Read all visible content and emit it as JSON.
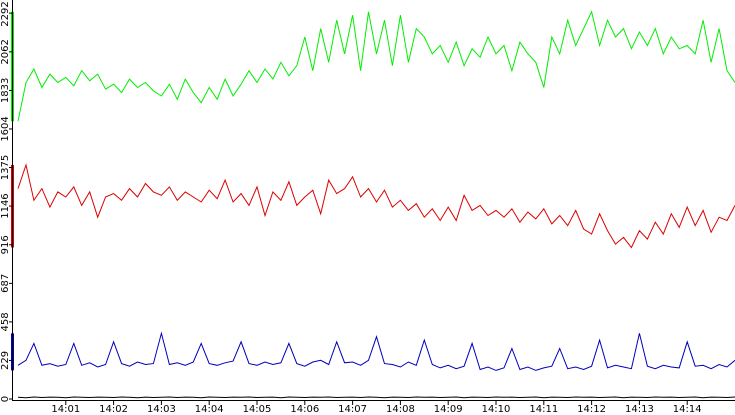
{
  "chart_data": {
    "type": "line",
    "x": [
      0,
      10,
      20,
      30,
      40,
      50,
      60,
      70,
      80,
      90,
      100,
      110,
      120,
      130,
      140,
      150,
      160,
      170,
      180,
      190,
      200,
      210,
      220,
      230,
      240,
      250,
      260,
      270,
      280,
      290,
      300,
      310,
      320,
      330,
      340,
      350,
      360,
      370,
      380,
      390,
      400,
      410,
      420,
      430,
      440,
      450,
      460,
      470,
      480,
      490,
      500,
      510,
      520,
      530,
      540,
      550,
      560,
      570,
      580,
      590,
      600,
      610,
      620,
      630,
      640,
      650,
      660,
      670,
      680,
      690,
      700,
      710,
      720,
      730,
      740,
      750,
      760,
      770,
      780,
      790,
      800,
      810,
      820,
      830,
      840,
      850,
      860,
      870,
      880,
      890,
      900
    ],
    "series": [
      {
        "color": "#00ee00",
        "values": [
          1650,
          1880,
          1960,
          1850,
          1930,
          1880,
          1910,
          1860,
          1950,
          1890,
          1930,
          1840,
          1870,
          1820,
          1900,
          1850,
          1880,
          1830,
          1800,
          1870,
          1780,
          1900,
          1820,
          1760,
          1850,
          1780,
          1900,
          1800,
          1870,
          1950,
          1880,
          1960,
          1900,
          2000,
          1920,
          1980,
          2150,
          1950,
          2200,
          2000,
          2250,
          2050,
          2280,
          1950,
          2300,
          2050,
          2250,
          1980,
          2280,
          2000,
          2200,
          2150,
          2050,
          2100,
          2000,
          2120,
          1980,
          2080,
          2030,
          2150,
          2050,
          2100,
          1950,
          2120,
          2050,
          2000,
          1850,
          2150,
          2050,
          2250,
          2100,
          2200,
          2300,
          2100,
          2250,
          2150,
          2200,
          2080,
          2180,
          2100,
          2200,
          2050,
          2150,
          2080,
          2100,
          2050,
          2250,
          2000,
          2200,
          1950,
          1880
        ]
      },
      {
        "color": "#dd0000",
        "values": [
          1250,
          1390,
          1180,
          1250,
          1140,
          1230,
          1200,
          1260,
          1150,
          1230,
          1080,
          1200,
          1220,
          1180,
          1250,
          1200,
          1280,
          1230,
          1210,
          1260,
          1180,
          1230,
          1200,
          1170,
          1240,
          1190,
          1300,
          1170,
          1220,
          1150,
          1260,
          1090,
          1230,
          1180,
          1290,
          1150,
          1200,
          1240,
          1100,
          1300,
          1220,
          1250,
          1320,
          1200,
          1250,
          1170,
          1240,
          1140,
          1180,
          1120,
          1160,
          1080,
          1130,
          1060,
          1140,
          1060,
          1210,
          1120,
          1150,
          1090,
          1120,
          1080,
          1130,
          1050,
          1110,
          1070,
          1130,
          1040,
          1090,
          1030,
          1120,
          1010,
          980,
          1100,
          1000,
          920,
          960,
          900,
          1000,
          950,
          1050,
          980,
          1100,
          1020,
          1140,
          1030,
          1120,
          990,
          1080,
          1060,
          1150
        ]
      },
      {
        "color": "#0000bb",
        "values": [
          200,
          230,
          330,
          200,
          210,
          195,
          205,
          330,
          200,
          215,
          190,
          205,
          340,
          210,
          195,
          220,
          205,
          210,
          390,
          205,
          215,
          200,
          220,
          330,
          210,
          200,
          215,
          225,
          340,
          210,
          200,
          220,
          205,
          215,
          330,
          210,
          195,
          220,
          230,
          205,
          340,
          215,
          220,
          200,
          230,
          370,
          210,
          205,
          190,
          220,
          200,
          350,
          205,
          185,
          200,
          180,
          195,
          330,
          175,
          190,
          170,
          185,
          300,
          175,
          190,
          170,
          185,
          195,
          300,
          180,
          190,
          175,
          195,
          350,
          185,
          200,
          190,
          180,
          390,
          195,
          180,
          200,
          190,
          185,
          340,
          195,
          200,
          180,
          205,
          190,
          230
        ]
      },
      {
        "color": "#000000",
        "values": [
          10,
          8,
          12,
          9,
          11,
          10,
          8,
          12,
          10,
          9,
          11,
          10,
          9,
          12,
          10,
          8,
          11,
          9,
          10,
          12,
          9,
          11,
          10,
          8,
          12,
          10,
          9,
          11,
          10,
          12,
          9,
          10,
          11,
          8,
          12,
          10,
          9,
          11,
          10,
          12,
          9,
          10,
          11,
          9,
          12,
          10,
          8,
          11,
          10,
          9,
          12,
          10,
          11,
          9,
          10,
          12,
          8,
          11,
          10,
          9,
          12,
          10,
          11,
          9,
          10,
          12,
          8,
          11,
          10,
          9,
          12,
          10,
          11,
          9,
          10,
          12,
          8,
          11,
          10,
          9,
          12,
          10,
          11,
          9,
          10,
          12,
          8,
          11,
          10,
          9,
          12
        ]
      }
    ],
    "xlim": [
      0,
      900
    ],
    "xticks": [
      {
        "value": 60,
        "label": "14:01"
      },
      {
        "value": 120,
        "label": "14:02"
      },
      {
        "value": 180,
        "label": "14:03"
      },
      {
        "value": 240,
        "label": "14:04"
      },
      {
        "value": 300,
        "label": "14:05"
      },
      {
        "value": 360,
        "label": "14:06"
      },
      {
        "value": 420,
        "label": "14:07"
      },
      {
        "value": 480,
        "label": "14:08"
      },
      {
        "value": 540,
        "label": "14:09"
      },
      {
        "value": 600,
        "label": "14:10"
      },
      {
        "value": 660,
        "label": "14:11"
      },
      {
        "value": 720,
        "label": "14:12"
      },
      {
        "value": 780,
        "label": "14:13"
      },
      {
        "value": 840,
        "label": "14:14"
      }
    ],
    "ylim": [
      0,
      2370
    ],
    "yticks": [
      0,
      229,
      458,
      687,
      916,
      1146,
      1375,
      1604,
      1833,
      2062,
      2292
    ]
  }
}
